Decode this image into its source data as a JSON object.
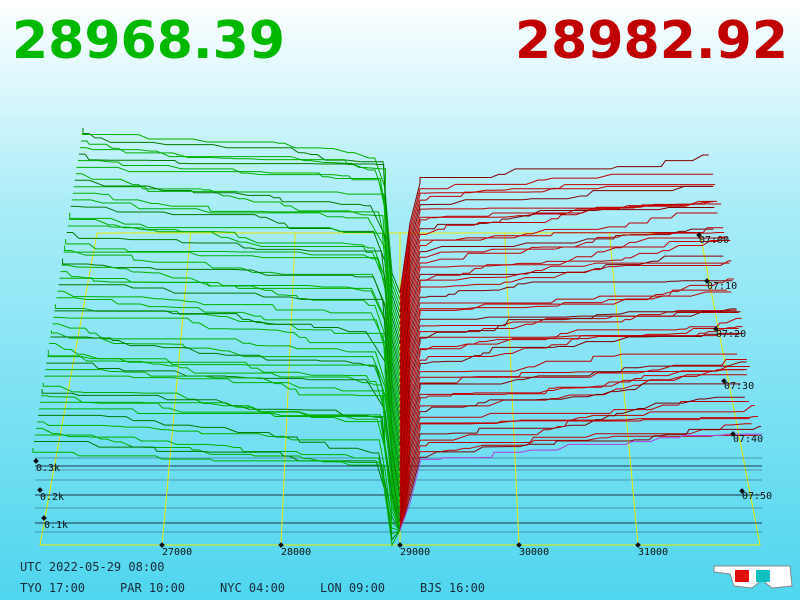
{
  "header": {
    "bid": "28968.39",
    "ask": "28982.92"
  },
  "price_axis": {
    "labels": [
      "27000",
      "28000",
      "29000",
      "30000",
      "31000"
    ]
  },
  "time_axis": {
    "labels": [
      "07:00",
      "07:10",
      "07:20",
      "07:30",
      "07:40",
      "07:50"
    ]
  },
  "depth_axis": {
    "labels": [
      "0.3k",
      "0.2k",
      "0.1k"
    ]
  },
  "footer": {
    "utc": "UTC 2022-05-29 08:00",
    "cities": [
      "TYO 17:00",
      "PAR 10:00",
      "NYC 04:00",
      "LON 09:00",
      "BJS 16:00"
    ]
  }
}
